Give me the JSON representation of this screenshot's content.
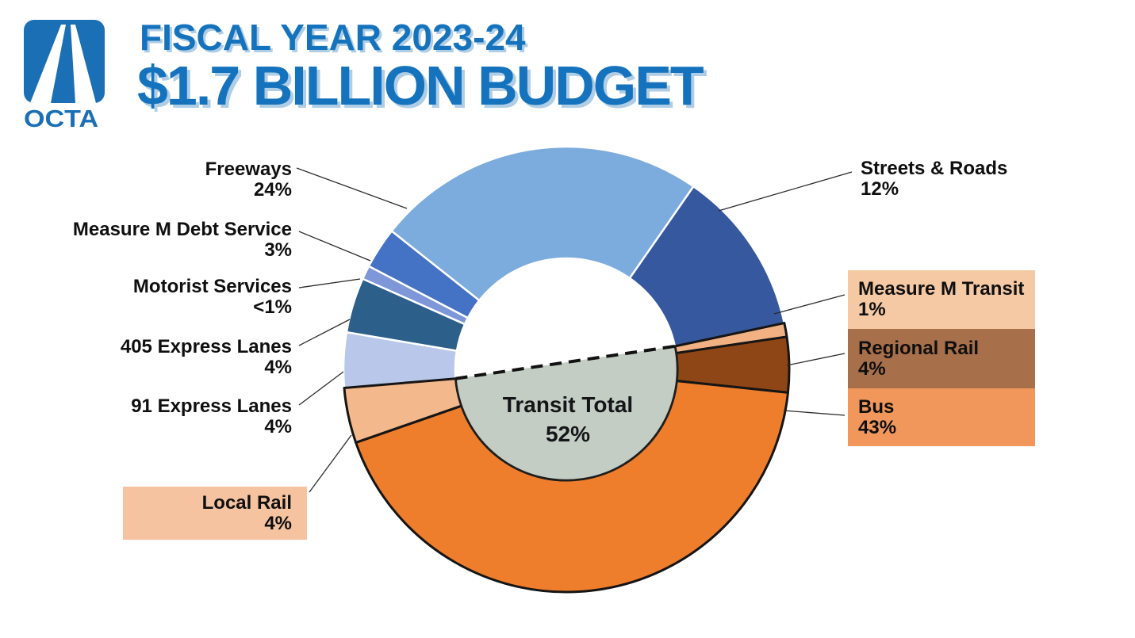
{
  "header": {
    "logo_text": "OCTA",
    "title_line1": "FISCAL YEAR 2023-24",
    "title_line2": "$1.7 BILLION BUDGET",
    "brand_blue": "#1B70B5",
    "title_blue": "#1573BD",
    "title_shadow_blue": "#AFCDE4"
  },
  "chart_data": {
    "type": "pie",
    "title": "Fiscal Year 2023-24 $1.7 Billion Budget",
    "donut": true,
    "start_angle_deg": 12,
    "direction": "clockwise",
    "slices": [
      {
        "label": "Measure M Transit",
        "pct_display": "1%",
        "value": 1,
        "color": "#F1B183",
        "group": "transit",
        "box_color": "#F5C9A4"
      },
      {
        "label": "Regional Rail",
        "pct_display": "4%",
        "value": 4,
        "color": "#8F4616",
        "group": "transit",
        "box_color": "#A8704A"
      },
      {
        "label": "Bus",
        "pct_display": "43%",
        "value": 43,
        "color": "#EE7E2C",
        "group": "transit",
        "box_color": "#F1975B"
      },
      {
        "label": "Local Rail",
        "pct_display": "4%",
        "value": 4,
        "color": "#F3B88B",
        "group": "transit",
        "box_color": "#F5C3A0"
      },
      {
        "label": "91 Express Lanes",
        "pct_display": "4%",
        "value": 4,
        "color": "#B9C8EA",
        "group": "highway"
      },
      {
        "label": "405 Express Lanes",
        "pct_display": "4%",
        "value": 4,
        "color": "#2C5F8A",
        "group": "highway"
      },
      {
        "label": "Motorist Services",
        "pct_display": "<1%",
        "value": 1,
        "color": "#7E97D9",
        "group": "highway"
      },
      {
        "label": "Measure M Debt Service",
        "pct_display": "3%",
        "value": 3,
        "color": "#4472C4",
        "group": "highway"
      },
      {
        "label": "Freeways",
        "pct_display": "24%",
        "value": 24,
        "color": "#7CACDD",
        "group": "highway"
      },
      {
        "label": "Streets & Roads",
        "pct_display": "12%",
        "value": 12,
        "color": "#36589F",
        "group": "highway"
      }
    ],
    "center_overlay": {
      "line1": "Transit Total",
      "line2": "52%",
      "fill": "#C4CDC3",
      "transit_total_pct": 52
    },
    "legend_position": "callout-labels",
    "grid": false
  }
}
